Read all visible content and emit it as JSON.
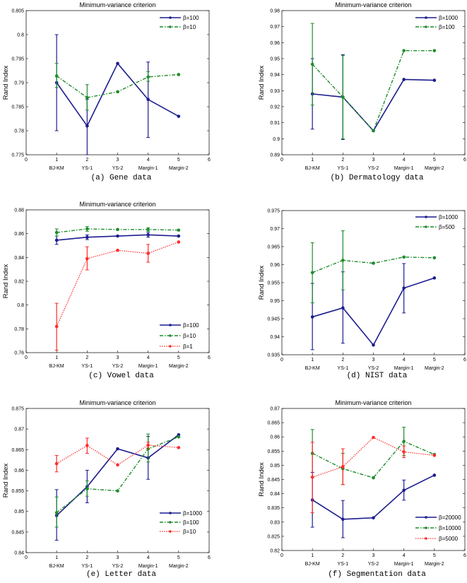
{
  "colors": {
    "blue": "#1c1c8f",
    "green": "#1d8c2a",
    "red": "#ff2a2a"
  },
  "xticks": [
    "0",
    "1",
    "2",
    "3",
    "4",
    "5",
    "6"
  ],
  "categories": [
    "BJ-KM",
    "YS-1",
    "YS-2",
    "Margin-1",
    "Margin-2"
  ],
  "chart_data": [
    {
      "type": "line",
      "panel": "a",
      "title": "Minimum-variance criterion",
      "caption": "(a) Gene data",
      "xlabel": "",
      "ylabel": "Rand Index",
      "xlim": [
        0,
        6
      ],
      "ylim": [
        0.775,
        0.805
      ],
      "yticks": [
        "0.775",
        "0.78",
        "0.785",
        "0.79",
        "0.795",
        "0.8",
        "0.805"
      ],
      "legend": "top-right",
      "series": [
        {
          "name": "β=100",
          "style": "blue",
          "values": [
            0.79,
            0.781,
            0.794,
            0.7865,
            0.783
          ],
          "errors": [
            [
              0.78,
              0.8
            ],
            [
              0.775,
              0.7865
            ],
            null,
            [
              0.7786,
              0.7943
            ],
            null
          ]
        },
        {
          "name": "β=10",
          "style": "green",
          "values": [
            0.7914,
            0.7869,
            0.7881,
            0.7912,
            0.7917
          ],
          "errors": [
            [
              0.789,
              0.794
            ],
            [
              0.7843,
              0.7896
            ],
            null,
            [
              0.7903,
              0.7923
            ],
            null
          ]
        }
      ]
    },
    {
      "type": "line",
      "panel": "b",
      "title": "Minimum-variance criterion",
      "caption": "(b) Dermatology data",
      "xlabel": "",
      "ylabel": "Rand Index",
      "xlim": [
        0,
        6
      ],
      "ylim": [
        0.89,
        0.98
      ],
      "yticks": [
        "0.89",
        "0.9",
        "0.91",
        "0.92",
        "0.93",
        "0.94",
        "0.95",
        "0.96",
        "0.97",
        "0.98"
      ],
      "legend": "top-right",
      "series": [
        {
          "name": "β=1000",
          "style": "blue",
          "values": [
            0.928,
            0.926,
            0.905,
            0.937,
            0.9365
          ],
          "errors": [
            [
              0.906,
              0.95
            ],
            [
              0.8995,
              0.9525
            ],
            null,
            null,
            null
          ]
        },
        {
          "name": "β=100",
          "style": "green",
          "values": [
            0.9465,
            0.926,
            0.905,
            0.955,
            0.955
          ],
          "errors": [
            [
              0.921,
              0.972
            ],
            [
              0.9,
              0.952
            ],
            null,
            null,
            null
          ]
        }
      ]
    },
    {
      "type": "line",
      "panel": "c",
      "title": "Minimum-variance criterion",
      "caption": "(c) Vowel data",
      "xlabel": "",
      "ylabel": "Rand Index",
      "xlim": [
        0,
        6
      ],
      "ylim": [
        0.76,
        0.88
      ],
      "yticks": [
        "0.76",
        "0.78",
        "0.8",
        "0.82",
        "0.84",
        "0.86",
        "0.88"
      ],
      "legend": "bottom-right",
      "series": [
        {
          "name": "β=100",
          "style": "blue",
          "values": [
            0.8545,
            0.857,
            0.858,
            0.859,
            0.858
          ],
          "errors": [
            [
              0.851,
              0.858
            ],
            [
              0.855,
              0.859
            ],
            null,
            [
              0.857,
              0.861
            ],
            null
          ]
        },
        {
          "name": "β=10",
          "style": "green",
          "values": [
            0.861,
            0.864,
            0.8635,
            0.8635,
            0.863
          ],
          "errors": [
            [
              0.858,
              0.864
            ],
            [
              0.862,
              0.866
            ],
            null,
            [
              0.862,
              0.865
            ],
            null
          ]
        },
        {
          "name": "β=1",
          "style": "red",
          "values": [
            0.782,
            0.839,
            0.846,
            0.8435,
            0.853
          ],
          "errors": [
            [
              0.762,
              0.8015
            ],
            [
              0.8295,
              0.849
            ],
            null,
            [
              0.836,
              0.851
            ],
            null
          ]
        }
      ]
    },
    {
      "type": "line",
      "panel": "d",
      "title": "",
      "caption": "(d) NIST data",
      "xlabel": "",
      "ylabel": "Rand Index",
      "xlim": [
        0,
        6
      ],
      "ylim": [
        0.935,
        0.975
      ],
      "yticks": [
        "0.935",
        "0.94",
        "0.945",
        "0.95",
        "0.955",
        "0.96",
        "0.965",
        "0.97",
        "0.975"
      ],
      "legend": "top-right",
      "series": [
        {
          "name": "β=1000",
          "style": "blue",
          "values": [
            0.9455,
            0.948,
            0.9377,
            0.9535,
            0.9563
          ],
          "errors": [
            [
              0.9364,
              0.9548
            ],
            [
              0.9382,
              0.958
            ],
            null,
            [
              0.9466,
              0.9603
            ],
            null
          ]
        },
        {
          "name": "β=500",
          "style": "green",
          "values": [
            0.9578,
            0.9612,
            0.9604,
            0.9621,
            0.9619
          ],
          "errors": [
            [
              0.9494,
              0.9661
            ],
            [
              0.953,
              0.9694
            ],
            null,
            null,
            null
          ]
        }
      ]
    },
    {
      "type": "line",
      "panel": "e",
      "title": "Minimum-variance criterion",
      "caption": "(e) Letter data",
      "xlabel": "",
      "ylabel": "Rand Index",
      "xlim": [
        0,
        6
      ],
      "ylim": [
        0.84,
        0.875
      ],
      "yticks": [
        "0.84",
        "0.845",
        "0.85",
        "0.855",
        "0.86",
        "0.865",
        "0.87",
        "0.875"
      ],
      "legend": "bottom-right",
      "series": [
        {
          "name": "β=1000",
          "style": "blue",
          "values": [
            0.849,
            0.856,
            0.8652,
            0.863,
            0.8686
          ],
          "errors": [
            [
              0.843,
              0.8553
            ],
            [
              0.8521,
              0.86
            ],
            null,
            [
              0.8578,
              0.8682
            ],
            null
          ]
        },
        {
          "name": "β=100",
          "style": "green",
          "values": [
            0.8497,
            0.8555,
            0.855,
            0.8652,
            0.8681
          ],
          "errors": [
            [
              0.8462,
              0.8535
            ],
            [
              0.8537,
              0.8574
            ],
            null,
            [
              0.862,
              0.8688
            ],
            null
          ]
        },
        {
          "name": "β=10",
          "style": "red",
          "values": [
            0.8616,
            0.866,
            0.8613,
            0.8661,
            0.8655
          ],
          "errors": [
            [
              0.8596,
              0.8636
            ],
            [
              0.8641,
              0.8678
            ],
            null,
            [
              0.8654,
              0.8668
            ],
            null
          ]
        }
      ]
    },
    {
      "type": "line",
      "panel": "f",
      "title": "Minimum-variance criterion",
      "caption": "(f) Segmentation data",
      "xlabel": "",
      "ylabel": "Rand Index",
      "xlim": [
        0,
        6
      ],
      "ylim": [
        0.82,
        0.87
      ],
      "yticks": [
        "0.82",
        "0.825",
        "0.83",
        "0.835",
        "0.84",
        "0.845",
        "0.85",
        "0.855",
        "0.86",
        "0.865",
        "0.87"
      ],
      "legend": "bottom-right",
      "series": [
        {
          "name": "β=20000",
          "style": "blue",
          "values": [
            0.8378,
            0.831,
            0.8315,
            0.8412,
            0.8465
          ],
          "errors": [
            [
              0.8282,
              0.8475
            ],
            [
              0.8245,
              0.8376
            ],
            null,
            [
              0.8377,
              0.8448
            ],
            null
          ]
        },
        {
          "name": "β=10000",
          "style": "green",
          "values": [
            0.8542,
            0.8488,
            0.8456,
            0.8584,
            0.8538
          ],
          "errors": [
            [
              0.8458,
              0.8626
            ],
            [
              0.8432,
              0.8542
            ],
            null,
            [
              0.8534,
              0.8634
            ],
            null
          ]
        },
        {
          "name": "β=5000",
          "style": "red",
          "values": [
            0.8458,
            0.8495,
            0.8598,
            0.8547,
            0.8535
          ],
          "errors": [
            [
              0.8333,
              0.8581
            ],
            [
              0.8432,
              0.8558
            ],
            null,
            [
              0.8527,
              0.8568
            ],
            null
          ]
        }
      ]
    }
  ]
}
